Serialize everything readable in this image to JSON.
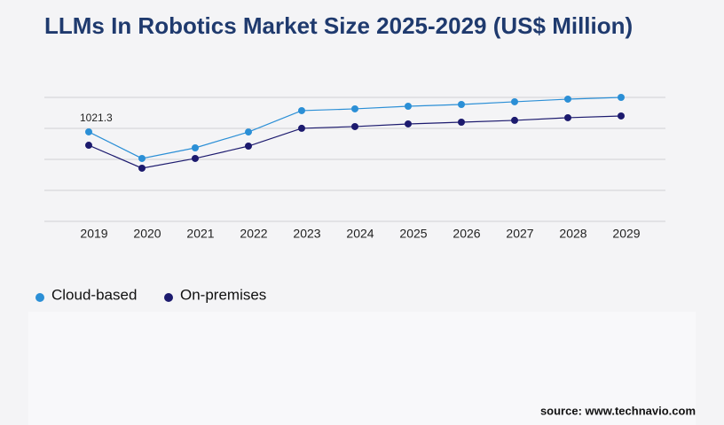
{
  "chart_data": {
    "type": "line",
    "title": "LLMs In Robotics Market Size 2025-2029 (US$ Million)",
    "categories": [
      "2019",
      "2020",
      "2021",
      "2022",
      "2023",
      "2024",
      "2025",
      "2026",
      "2027",
      "2028",
      "2029"
    ],
    "series": [
      {
        "name": "Cloud-based",
        "color": "#2b8fd6",
        "values": [
          1021.3,
          718,
          839,
          1020,
          1264,
          1284,
          1314,
          1334,
          1365,
          1395,
          1415
        ]
      },
      {
        "name": "On-premises",
        "color": "#1c1a6e",
        "values": [
          869,
          607,
          718,
          859,
          1062,
          1082,
          1112,
          1132,
          1153,
          1183,
          1203
        ]
      }
    ],
    "ylim": [
      0,
      1415
    ],
    "source": "source: www.technavio.com"
  }
}
